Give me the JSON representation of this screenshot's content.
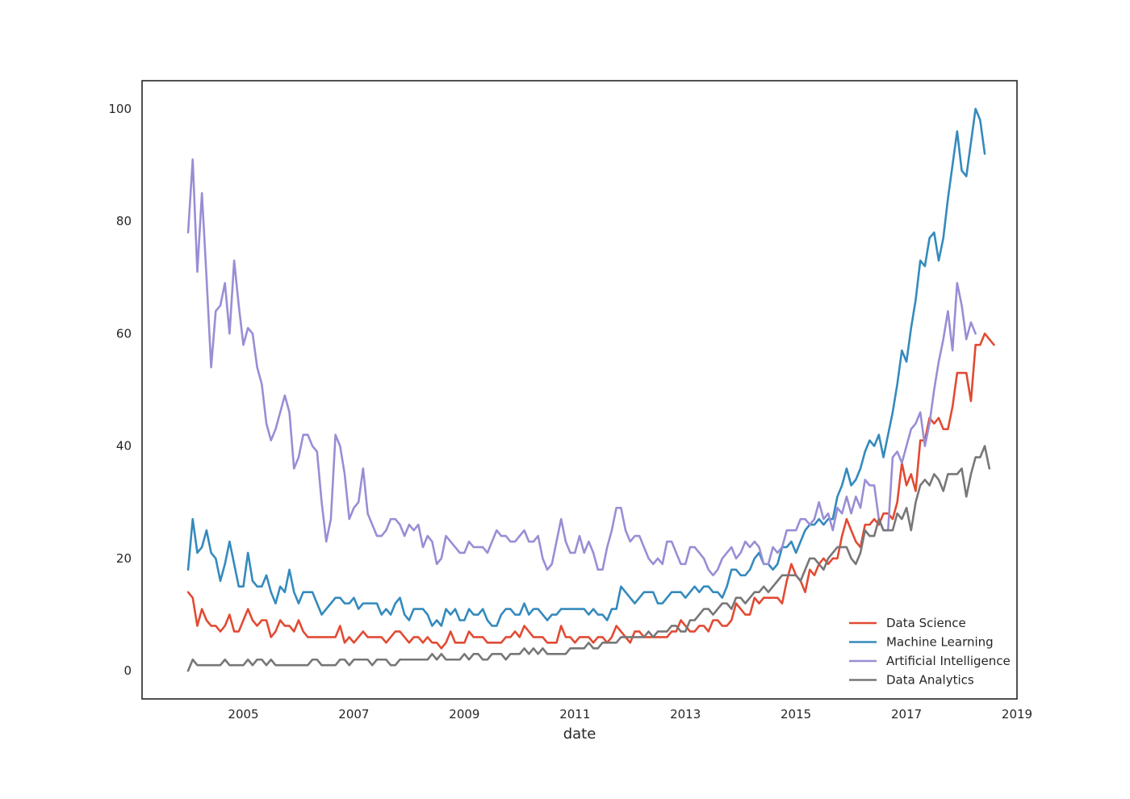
{
  "chart_data": {
    "type": "line",
    "title": "",
    "xlabel": "date",
    "ylabel": "",
    "x_start": "2004-01",
    "x_step": "month",
    "xlim": [
      "2003-03",
      "2019-01"
    ],
    "ylim": [
      -5,
      105
    ],
    "x_ticks": [
      "2005",
      "2007",
      "2009",
      "2011",
      "2013",
      "2015",
      "2017",
      "2019"
    ],
    "y_ticks": [
      0,
      20,
      40,
      60,
      80,
      100
    ],
    "grid": false,
    "legend_position": "lower-right",
    "series": [
      {
        "name": "Data Science",
        "color": "#e24a33",
        "values": [
          14,
          13,
          8,
          11,
          9,
          8,
          8,
          7,
          8,
          10,
          7,
          7,
          9,
          11,
          9,
          8,
          9,
          9,
          6,
          7,
          9,
          8,
          8,
          7,
          9,
          7,
          6,
          6,
          6,
          6,
          6,
          6,
          6,
          8,
          5,
          6,
          5,
          6,
          7,
          6,
          6,
          6,
          6,
          5,
          6,
          7,
          7,
          6,
          5,
          6,
          6,
          5,
          6,
          5,
          5,
          4,
          5,
          7,
          5,
          5,
          5,
          7,
          6,
          6,
          6,
          5,
          5,
          5,
          5,
          6,
          6,
          7,
          6,
          8,
          7,
          6,
          6,
          6,
          5,
          5,
          5,
          8,
          6,
          6,
          5,
          6,
          6,
          6,
          5,
          6,
          6,
          5,
          6,
          8,
          7,
          6,
          5,
          7,
          7,
          6,
          6,
          6,
          6,
          6,
          6,
          7,
          7,
          9,
          8,
          7,
          7,
          8,
          8,
          7,
          9,
          9,
          8,
          8,
          9,
          12,
          11,
          10,
          10,
          13,
          12,
          13,
          13,
          13,
          13,
          12,
          16,
          19,
          17,
          16,
          14,
          18,
          17,
          19,
          20,
          19,
          20,
          20,
          24,
          27,
          25,
          23,
          22,
          26,
          26,
          27,
          26,
          28,
          28,
          27,
          30,
          37,
          33,
          35,
          32,
          41,
          41,
          45,
          44,
          45,
          43,
          43,
          47,
          53,
          53,
          53,
          48,
          58,
          58,
          60,
          59,
          58
        ]
      },
      {
        "name": "Machine Learning",
        "color": "#348abd",
        "values": [
          18,
          27,
          21,
          22,
          25,
          21,
          20,
          16,
          19,
          23,
          19,
          15,
          15,
          21,
          16,
          15,
          15,
          17,
          14,
          12,
          15,
          14,
          18,
          14,
          12,
          14,
          14,
          14,
          12,
          10,
          11,
          12,
          13,
          13,
          12,
          12,
          13,
          11,
          12,
          12,
          12,
          12,
          10,
          11,
          10,
          12,
          13,
          10,
          9,
          11,
          11,
          11,
          10,
          8,
          9,
          8,
          11,
          10,
          11,
          9,
          9,
          11,
          10,
          10,
          11,
          9,
          8,
          8,
          10,
          11,
          11,
          10,
          10,
          12,
          10,
          11,
          11,
          10,
          9,
          10,
          10,
          11,
          11,
          11,
          11,
          11,
          11,
          10,
          11,
          10,
          10,
          9,
          11,
          11,
          15,
          14,
          13,
          12,
          13,
          14,
          14,
          14,
          12,
          12,
          13,
          14,
          14,
          14,
          13,
          14,
          15,
          14,
          15,
          15,
          14,
          14,
          13,
          15,
          18,
          18,
          17,
          17,
          18,
          20,
          21,
          19,
          19,
          18,
          19,
          22,
          22,
          23,
          21,
          23,
          25,
          26,
          26,
          27,
          26,
          27,
          27,
          31,
          33,
          36,
          33,
          34,
          36,
          39,
          41,
          40,
          42,
          38,
          42,
          46,
          51,
          57,
          55,
          61,
          66,
          73,
          72,
          77,
          78,
          73,
          77,
          84,
          90,
          96,
          89,
          88,
          94,
          100,
          98,
          92
        ]
      },
      {
        "name": "Artificial Intelligence",
        "color": "#988ed5",
        "values": [
          78,
          91,
          71,
          85,
          70,
          54,
          64,
          65,
          69,
          60,
          73,
          65,
          58,
          61,
          60,
          54,
          51,
          44,
          41,
          43,
          46,
          49,
          46,
          36,
          38,
          42,
          42,
          40,
          39,
          30,
          23,
          27,
          42,
          40,
          35,
          27,
          29,
          30,
          36,
          28,
          26,
          24,
          24,
          25,
          27,
          27,
          26,
          24,
          26,
          25,
          26,
          22,
          24,
          23,
          19,
          20,
          24,
          23,
          22,
          21,
          21,
          23,
          22,
          22,
          22,
          21,
          23,
          25,
          24,
          24,
          23,
          23,
          24,
          25,
          23,
          23,
          24,
          20,
          18,
          19,
          23,
          27,
          23,
          21,
          21,
          24,
          21,
          23,
          21,
          18,
          18,
          22,
          25,
          29,
          29,
          25,
          23,
          24,
          24,
          22,
          20,
          19,
          20,
          19,
          23,
          23,
          21,
          19,
          19,
          22,
          22,
          21,
          20,
          18,
          17,
          18,
          20,
          21,
          22,
          20,
          21,
          23,
          22,
          23,
          22,
          19,
          19,
          22,
          21,
          22,
          25,
          25,
          25,
          27,
          27,
          26,
          27,
          30,
          27,
          28,
          25,
          29,
          28,
          31,
          28,
          31,
          29,
          34,
          33,
          33,
          27,
          25,
          25,
          38,
          39,
          37,
          40,
          43,
          44,
          46,
          40,
          44,
          50,
          55,
          59,
          64,
          57,
          69,
          65,
          59,
          62,
          60
        ]
      },
      {
        "name": "Data Analytics",
        "color": "#777777",
        "values": [
          0,
          2,
          1,
          1,
          1,
          1,
          1,
          1,
          2,
          1,
          1,
          1,
          1,
          2,
          1,
          2,
          2,
          1,
          2,
          1,
          1,
          1,
          1,
          1,
          1,
          1,
          1,
          2,
          2,
          1,
          1,
          1,
          1,
          2,
          2,
          1,
          2,
          2,
          2,
          2,
          1,
          2,
          2,
          2,
          1,
          1,
          2,
          2,
          2,
          2,
          2,
          2,
          2,
          3,
          2,
          3,
          2,
          2,
          2,
          2,
          3,
          2,
          3,
          3,
          2,
          2,
          3,
          3,
          3,
          2,
          3,
          3,
          3,
          4,
          3,
          4,
          3,
          4,
          3,
          3,
          3,
          3,
          3,
          4,
          4,
          4,
          4,
          5,
          4,
          4,
          5,
          5,
          5,
          5,
          6,
          6,
          6,
          6,
          6,
          6,
          7,
          6,
          7,
          7,
          7,
          8,
          8,
          7,
          7,
          9,
          9,
          10,
          11,
          11,
          10,
          11,
          12,
          12,
          11,
          13,
          13,
          12,
          13,
          14,
          14,
          15,
          14,
          15,
          16,
          17,
          17,
          17,
          17,
          16,
          18,
          20,
          20,
          19,
          18,
          20,
          21,
          22,
          22,
          22,
          20,
          19,
          21,
          25,
          24,
          24,
          27,
          25,
          25,
          25,
          28,
          27,
          29,
          25,
          30,
          33,
          34,
          33,
          35,
          34,
          32,
          35,
          35,
          35,
          36,
          31,
          35,
          38,
          38,
          40,
          36
        ]
      }
    ]
  }
}
